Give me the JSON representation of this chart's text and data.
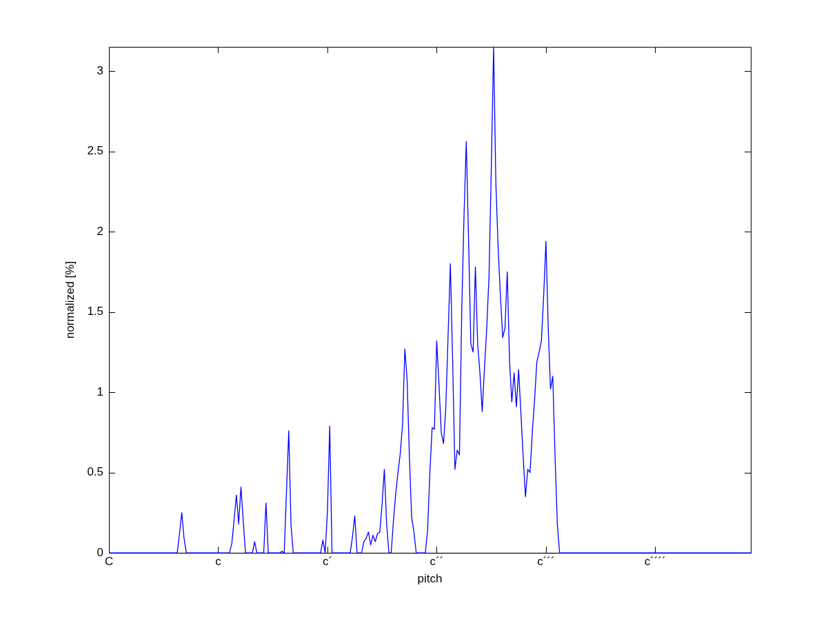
{
  "chart_data": {
    "type": "line",
    "xlabel": "pitch",
    "ylabel": "normalized [%]",
    "ylim": [
      0,
      3.15
    ],
    "yticks": [
      0,
      0.5,
      1,
      1.5,
      2,
      2.5,
      3
    ],
    "grid": false,
    "legend": false,
    "marker": "none",
    "line_style": "solid",
    "categories": [
      "C",
      null,
      null,
      null,
      null,
      null,
      null,
      null,
      null,
      null,
      null,
      null,
      null,
      null,
      null,
      null,
      null,
      null,
      null,
      null,
      null,
      null,
      null,
      null,
      null,
      null,
      null,
      null,
      null,
      null,
      null,
      null,
      null,
      null,
      null,
      null,
      null,
      null,
      null,
      null,
      null,
      null,
      null,
      null,
      null,
      null,
      null,
      null,
      "c",
      null,
      null,
      null,
      null,
      null,
      null,
      null,
      null,
      null,
      null,
      null,
      null,
      null,
      null,
      null,
      null,
      null,
      null,
      null,
      null,
      null,
      null,
      null,
      null,
      null,
      null,
      null,
      null,
      null,
      null,
      null,
      null,
      null,
      null,
      null,
      null,
      null,
      null,
      null,
      null,
      null,
      null,
      null,
      null,
      null,
      null,
      null,
      "c´",
      null,
      null,
      null,
      null,
      null,
      null,
      null,
      null,
      null,
      null,
      null,
      null,
      null,
      null,
      null,
      null,
      null,
      null,
      null,
      null,
      null,
      null,
      null,
      null,
      null,
      null,
      null,
      null,
      null,
      null,
      null,
      null,
      null,
      null,
      null,
      null,
      null,
      null,
      null,
      null,
      null,
      null,
      null,
      null,
      null,
      null,
      null,
      "c´´",
      null,
      null,
      null,
      null,
      null,
      null,
      null,
      null,
      null,
      null,
      null,
      null,
      null,
      null,
      null,
      null,
      null,
      null,
      null,
      null,
      null,
      null,
      null,
      null,
      null,
      null,
      null,
      null,
      null,
      null,
      null,
      null,
      null,
      null,
      null,
      null,
      null,
      null,
      null,
      null,
      null,
      null,
      null,
      null,
      null,
      null,
      null,
      "c´´´",
      null,
      null,
      null,
      null,
      null,
      null,
      null,
      null,
      null,
      null,
      null,
      null,
      null,
      null,
      null,
      null,
      null,
      null,
      null,
      null,
      null,
      null,
      null,
      null,
      null,
      null,
      null,
      null,
      null,
      null,
      null,
      null,
      null,
      null,
      null,
      null,
      null,
      null,
      null,
      null,
      null,
      null,
      null,
      null,
      null,
      null,
      null,
      "c´´´´",
      null,
      null,
      null,
      null,
      null,
      null,
      null,
      null,
      null,
      null,
      null,
      null,
      null,
      null,
      null,
      null,
      null,
      null,
      null,
      null,
      null,
      null,
      null,
      null,
      null,
      null,
      null,
      null,
      null,
      null,
      null,
      null,
      null,
      null,
      null,
      null,
      null,
      null,
      null,
      null,
      null,
      null
    ],
    "series": [
      {
        "color": "#0000ff",
        "values": [
          0,
          0,
          0,
          0,
          0,
          0,
          0,
          0,
          0,
          0,
          0,
          0,
          0,
          0,
          0,
          0,
          0,
          0,
          0,
          0,
          0,
          0,
          0,
          0,
          0,
          0,
          0,
          0,
          0,
          0,
          0,
          0.12,
          0.25,
          0.09,
          0,
          0,
          0,
          0,
          0,
          0,
          0,
          0,
          0,
          0,
          0,
          0,
          0,
          0,
          0,
          0,
          0,
          0,
          0,
          0,
          0.06,
          0.21,
          0.36,
          0.18,
          0.41,
          0.2,
          0,
          0,
          0,
          0,
          0.07,
          0,
          0,
          0,
          0,
          0.31,
          0,
          0,
          0,
          0,
          0,
          0,
          0.01,
          0,
          0.38,
          0.76,
          0.17,
          0,
          0,
          0,
          0,
          0,
          0,
          0,
          0,
          0,
          0,
          0,
          0,
          0,
          0.08,
          0,
          0.26,
          0.79,
          0,
          0,
          0,
          0,
          0,
          0,
          0,
          0,
          0,
          0.1,
          0.23,
          0,
          0,
          0,
          0.07,
          0.09,
          0.13,
          0.05,
          0.11,
          0.07,
          0.12,
          0.13,
          0.3,
          0.52,
          0.18,
          0,
          0,
          0.2,
          0.37,
          0.5,
          0.62,
          0.8,
          1.27,
          1.08,
          0.6,
          0.22,
          0.13,
          0,
          0,
          0,
          0,
          0,
          0.14,
          0.5,
          0.78,
          0.77,
          1.32,
          1.05,
          0.75,
          0.68,
          0.9,
          1.35,
          1.8,
          1.2,
          0.52,
          0.64,
          0.61,
          1.5,
          2.1,
          2.56,
          1.95,
          1.3,
          1.25,
          1.78,
          1.3,
          1.12,
          0.88,
          1.15,
          1.4,
          1.73,
          2.4,
          3.15,
          2.3,
          1.9,
          1.6,
          1.34,
          1.4,
          1.75,
          1.2,
          0.94,
          1.12,
          0.91,
          1.14,
          0.87,
          0.6,
          0.35,
          0.52,
          0.5,
          0.75,
          0.95,
          1.19,
          1.25,
          1.32,
          1.6,
          1.94,
          1.4,
          1.02,
          1.1,
          0.6,
          0.18,
          0,
          0,
          0,
          0,
          0,
          0,
          0,
          0,
          0,
          0,
          0,
          0,
          0,
          0,
          0,
          0,
          0,
          0,
          0,
          0,
          0,
          0,
          0,
          0,
          0,
          0,
          0,
          0,
          0,
          0,
          0,
          0,
          0,
          0,
          0,
          0,
          0,
          0,
          0,
          0,
          0,
          0,
          0,
          0,
          0,
          0,
          0,
          0,
          0,
          0,
          0,
          0,
          0,
          0,
          0,
          0,
          0,
          0,
          0,
          0,
          0,
          0,
          0,
          0,
          0,
          0,
          0,
          0,
          0,
          0,
          0,
          0,
          0,
          0,
          0,
          0,
          0,
          0,
          0,
          0,
          0,
          0,
          0,
          0,
          0
        ]
      }
    ]
  }
}
